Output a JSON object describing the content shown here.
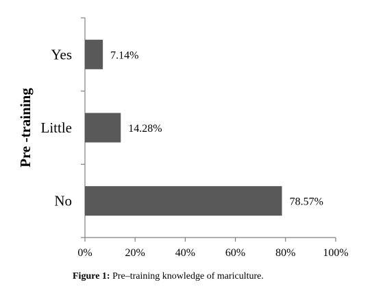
{
  "chart_data": {
    "type": "bar",
    "orientation": "horizontal",
    "categories": [
      "Yes",
      "Little",
      "No"
    ],
    "values": [
      7.14,
      14.28,
      78.57
    ],
    "data_labels": [
      "7.14%",
      "14.28%",
      "78.57%"
    ],
    "ylabel": "Pre -training",
    "xlabel": "",
    "xlim": [
      0,
      100
    ],
    "xticks": [
      0,
      20,
      40,
      60,
      80,
      100
    ],
    "xtick_labels": [
      "0%",
      "20%",
      "40%",
      "60%",
      "80%",
      "100%"
    ],
    "grid": false,
    "legend": "none",
    "bar_color": "#595959"
  },
  "caption": {
    "label": "Figure 1:",
    "text": " Pre–training knowledge of mariculture."
  }
}
